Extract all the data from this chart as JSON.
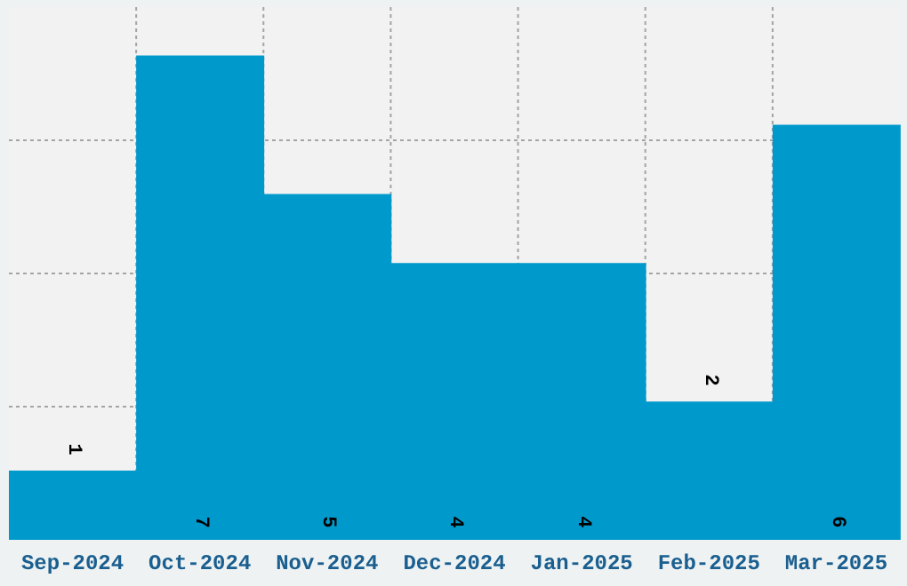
{
  "chart_data": {
    "type": "bar",
    "categories": [
      "Sep-2024",
      "Oct-2024",
      "Nov-2024",
      "Dec-2024",
      "Jan-2025",
      "Feb-2025",
      "Mar-2025"
    ],
    "values": [
      1,
      7,
      5,
      4,
      4,
      2,
      6
    ],
    "color": "#0099cc",
    "ylim": [
      0,
      7.7
    ],
    "tick_labels": "x",
    "grid": true,
    "data_labels": true
  }
}
